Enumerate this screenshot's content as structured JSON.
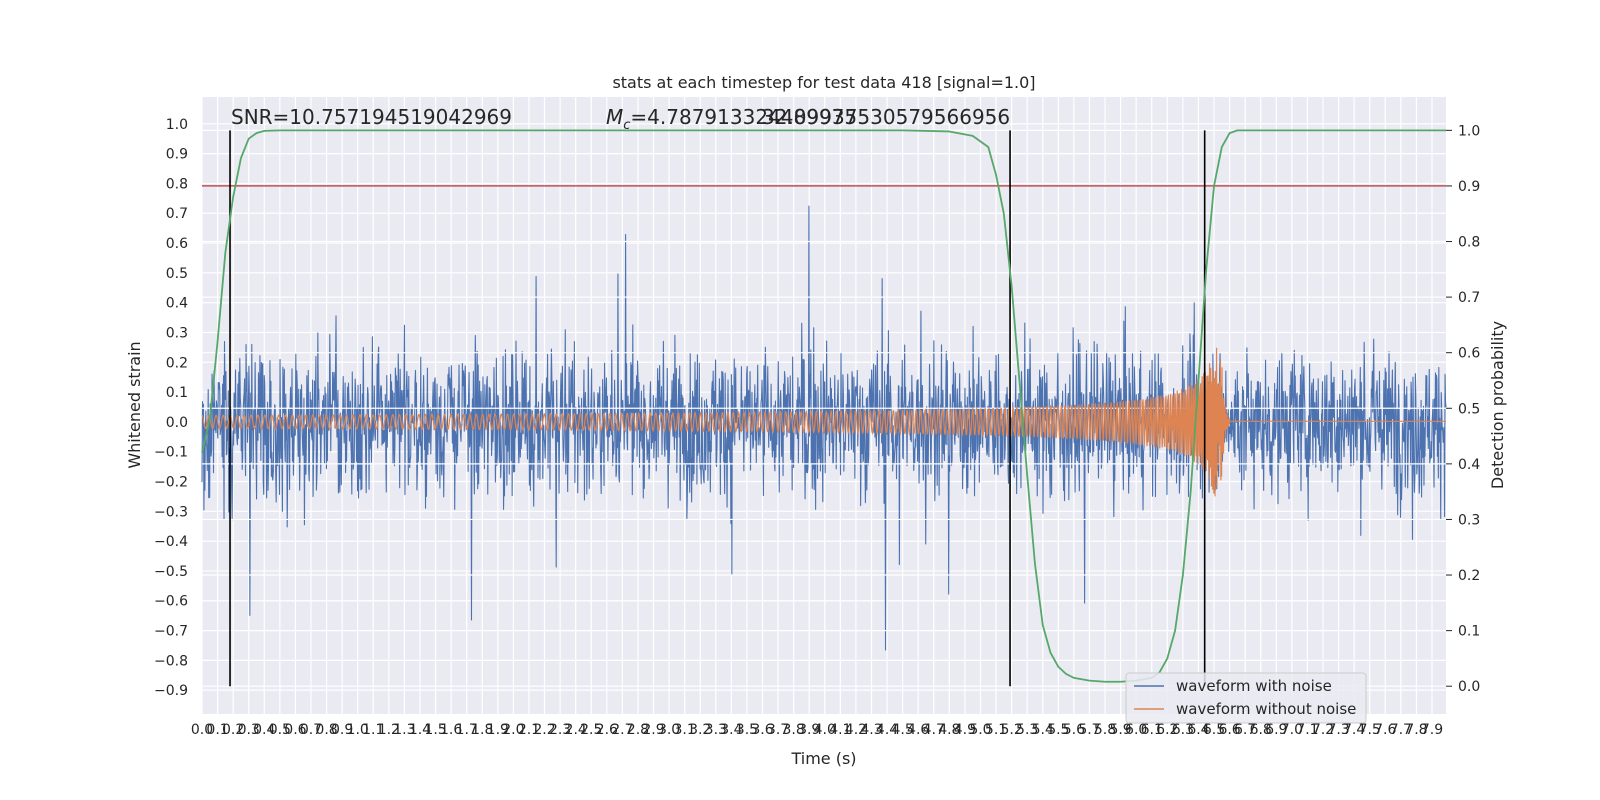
{
  "chart_data": {
    "type": "line",
    "title": "stats at each timestep for test data 418 [signal=1.0]",
    "xlabel": "Time (s)",
    "ylabel": "Whitened strain",
    "ylabel_right": "Detection probability",
    "xlim": [
      0.0,
      7.99
    ],
    "ylim": [
      -0.98,
      1.09
    ],
    "ylim_right": [
      -0.05,
      1.06
    ],
    "x_ticks": [
      "0.0",
      "0.1",
      "0.2",
      "0.3",
      "0.4",
      "0.5",
      "0.6",
      "0.7",
      "0.8",
      "0.9",
      "1.0",
      "1.1",
      "1.2",
      "1.3",
      "1.4",
      "1.5",
      "1.6",
      "1.7",
      "1.8",
      "1.9",
      "2.0",
      "2.1",
      "2.2",
      "2.3",
      "2.4",
      "2.5",
      "2.6",
      "2.7",
      "2.8",
      "2.9",
      "3.0",
      "3.1",
      "3.2",
      "3.3",
      "3.4",
      "3.5",
      "3.6",
      "3.7",
      "3.8",
      "3.9",
      "4.0",
      "4.1",
      "4.2",
      "4.3",
      "4.4",
      "4.5",
      "4.6",
      "4.7",
      "4.8",
      "4.9",
      "5.0",
      "5.1",
      "5.2",
      "5.3",
      "5.4",
      "5.5",
      "5.6",
      "5.7",
      "5.8",
      "5.9",
      "6.0",
      "6.1",
      "6.2",
      "6.3",
      "6.4",
      "6.5",
      "6.6",
      "6.7",
      "6.8",
      "6.9",
      "7.0",
      "7.1",
      "7.2",
      "7.3",
      "7.4",
      "7.5",
      "7.6",
      "7.7",
      "7.8",
      "7.9"
    ],
    "y_ticks": [
      "−0.9",
      "−0.8",
      "−0.7",
      "−0.6",
      "−0.5",
      "−0.4",
      "−0.3",
      "−0.2",
      "−0.1",
      "0.0",
      "0.1",
      "0.2",
      "0.3",
      "0.4",
      "0.5",
      "0.6",
      "0.7",
      "0.8",
      "0.9",
      "1.0"
    ],
    "y_ticks_right": [
      "0.0",
      "0.1",
      "0.2",
      "0.3",
      "0.4",
      "0.5",
      "0.6",
      "0.7",
      "0.8",
      "0.9",
      "1.0"
    ],
    "grid": true,
    "legend_position": "lower right",
    "annotations": {
      "snr": "SNR=10.757194519042969",
      "mc_symbol": "M",
      "mc_sub": "c",
      "mc_value": "=4.787913324489975",
      "overlap": "32.09937530579566956"
    },
    "threshold_right": 0.9,
    "vertical_markers_x": [
      0.18,
      5.19,
      6.44
    ],
    "series": [
      {
        "name": "waveform with noise",
        "color": "#4c72b0",
        "kind": "noise",
        "approx_amplitude_range": [
          -0.88,
          1.0
        ]
      },
      {
        "name": "waveform without noise",
        "color": "#dd8452",
        "kind": "chirp",
        "merger_time": 6.55,
        "peak_amplitude": 0.25
      },
      {
        "name": "detection probability",
        "color": "#55a868",
        "axis": "right",
        "x": [
          0.0,
          0.05,
          0.1,
          0.15,
          0.2,
          0.25,
          0.3,
          0.35,
          0.4,
          0.5,
          0.7,
          1.0,
          2.0,
          3.0,
          4.0,
          4.5,
          4.8,
          4.95,
          5.05,
          5.1,
          5.15,
          5.2,
          5.25,
          5.3,
          5.35,
          5.4,
          5.45,
          5.5,
          5.55,
          5.6,
          5.7,
          5.8,
          5.9,
          6.0,
          6.1,
          6.15,
          6.2,
          6.25,
          6.3,
          6.35,
          6.4,
          6.45,
          6.5,
          6.55,
          6.6,
          6.65,
          6.7,
          6.8,
          7.0,
          7.5,
          7.99
        ],
        "y": [
          0.42,
          0.48,
          0.62,
          0.78,
          0.88,
          0.95,
          0.985,
          0.995,
          0.999,
          1.0,
          1.0,
          1.0,
          1.0,
          1.0,
          1.0,
          1.0,
          0.998,
          0.99,
          0.97,
          0.92,
          0.85,
          0.72,
          0.55,
          0.38,
          0.22,
          0.11,
          0.06,
          0.035,
          0.022,
          0.015,
          0.01,
          0.008,
          0.008,
          0.01,
          0.015,
          0.025,
          0.05,
          0.1,
          0.2,
          0.35,
          0.55,
          0.75,
          0.9,
          0.97,
          0.995,
          1.0,
          1.0,
          1.0,
          1.0,
          1.0,
          1.0
        ]
      }
    ],
    "threshold_line_color": "#c44e52",
    "marker_line_color": "#000000"
  }
}
